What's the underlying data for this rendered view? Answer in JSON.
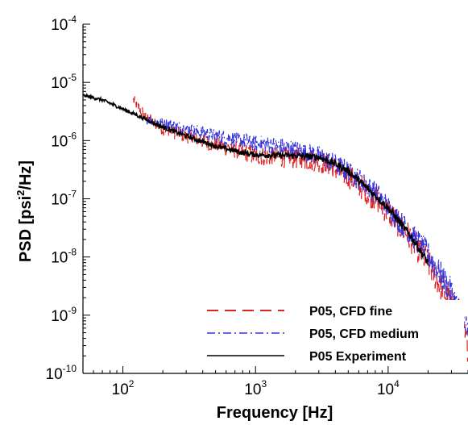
{
  "chart_data": {
    "type": "line",
    "title": "",
    "xlabel": "Frequency [Hz]",
    "ylabel_parts": [
      "PSD [psi",
      "2",
      "/Hz]"
    ],
    "xscale": "log",
    "yscale": "log",
    "xlim": [
      50,
      40000
    ],
    "ylim": [
      1e-10,
      0.0001
    ],
    "x_ticks": [
      {
        "base": "10",
        "exp": "2",
        "value": 100
      },
      {
        "base": "10",
        "exp": "3",
        "value": 1000
      },
      {
        "base": "10",
        "exp": "4",
        "value": 10000
      }
    ],
    "y_ticks": [
      {
        "base": "10",
        "exp": "-4",
        "value": 0.0001
      },
      {
        "base": "10",
        "exp": "-5",
        "value": 1e-05
      },
      {
        "base": "10",
        "exp": "-6",
        "value": 1e-06
      },
      {
        "base": "10",
        "exp": "-7",
        "value": 1e-07
      },
      {
        "base": "10",
        "exp": "-8",
        "value": 1e-08
      },
      {
        "base": "10",
        "exp": "-9",
        "value": 1e-09
      },
      {
        "base": "10",
        "exp": "-10",
        "value": 1e-10
      }
    ],
    "grid": false,
    "legend_position": "bottom-right",
    "series": [
      {
        "name": "P05, CFD fine",
        "color": "#dd2222",
        "dash": "dashed",
        "x": [
          120,
          150,
          200,
          300,
          500,
          800,
          1000,
          2000,
          3000,
          5000,
          8000,
          10000,
          15000,
          20000,
          30000,
          40000
        ],
        "y": [
          5e-06,
          2.5e-06,
          1.6e-06,
          1.2e-06,
          8.5e-07,
          6.5e-07,
          5.5e-07,
          5e-07,
          4.5e-07,
          2.5e-07,
          1e-07,
          6e-08,
          2e-08,
          8e-09,
          1.5e-09,
          3e-10
        ],
        "noise": 0.28
      },
      {
        "name": "P05, CFD medium",
        "color": "#3333dd",
        "dash": "dashdot",
        "x": [
          150,
          200,
          300,
          500,
          800,
          1000,
          1500,
          2000,
          3000,
          5000,
          8000,
          10000,
          15000,
          20000,
          30000,
          40000
        ],
        "y": [
          2.3e-06,
          2e-06,
          1.6e-06,
          1.2e-06,
          1e-06,
          9e-07,
          8e-07,
          7e-07,
          5.5e-07,
          3e-07,
          1.3e-07,
          7e-08,
          2.5e-08,
          1.1e-08,
          2.5e-09,
          5e-10
        ],
        "noise": 0.25
      },
      {
        "name": "P05 Experiment",
        "color": "#000000",
        "dash": "solid",
        "x": [
          50,
          70,
          100,
          150,
          200,
          300,
          500,
          800,
          1000,
          2000,
          3000,
          4000,
          5000,
          7000,
          10000,
          15000,
          20000
        ],
        "y": [
          6e-06,
          5e-06,
          3.5e-06,
          2.3e-06,
          1.7e-06,
          1.2e-06,
          8e-07,
          6.2e-07,
          5.7e-07,
          5.5e-07,
          5.2e-07,
          4e-07,
          3e-07,
          1.5e-07,
          7e-08,
          2.2e-08,
          8e-09
        ],
        "noise": 0.07
      }
    ]
  }
}
